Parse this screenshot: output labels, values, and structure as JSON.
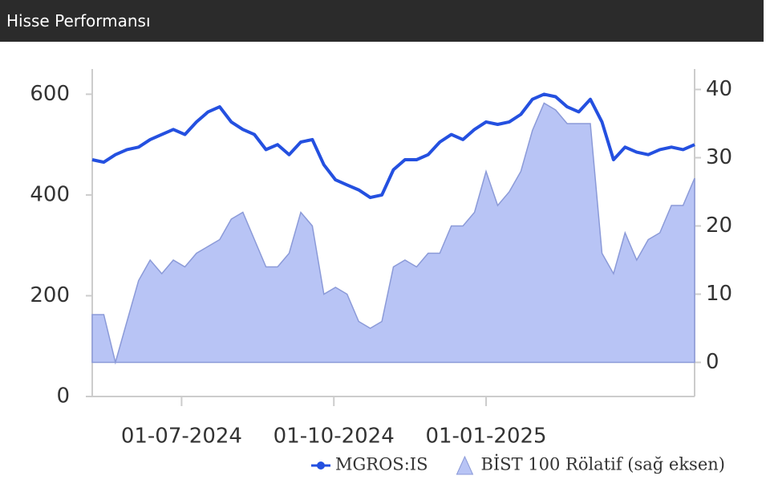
{
  "chart_data": {
    "type": "line",
    "title": "Hisse Performansı",
    "x": [
      "08-05-2024",
      "15-05-2024",
      "22-05-2024",
      "29-05-2024",
      "05-06-2024",
      "12-06-2024",
      "19-06-2024",
      "26-06-2024",
      "03-07-2024",
      "10-07-2024",
      "17-07-2024",
      "24-07-2024",
      "31-07-2024",
      "07-08-2024",
      "14-08-2024",
      "21-08-2024",
      "28-08-2024",
      "04-09-2024",
      "11-09-2024",
      "18-09-2024",
      "25-09-2024",
      "02-10-2024",
      "09-10-2024",
      "16-10-2024",
      "23-10-2024",
      "30-10-2024",
      "06-11-2024",
      "13-11-2024",
      "20-11-2024",
      "27-11-2024",
      "04-12-2024",
      "11-12-2024",
      "18-12-2024",
      "25-12-2024",
      "01-01-2025",
      "08-01-2025",
      "15-01-2025",
      "22-01-2025",
      "29-01-2025",
      "05-02-2025",
      "12-02-2025",
      "19-02-2025",
      "26-02-2025",
      "05-03-2025",
      "12-03-2025",
      "19-03-2025",
      "26-03-2025",
      "02-04-2025",
      "09-04-2025",
      "16-04-2025",
      "23-04-2025",
      "30-04-2025",
      "07-05-2025"
    ],
    "series": [
      {
        "name": "MGROS:IS",
        "color": "#2450e0",
        "values": [
          470,
          465,
          480,
          490,
          495,
          510,
          520,
          530,
          520,
          545,
          565,
          575,
          545,
          530,
          520,
          490,
          500,
          480,
          505,
          510,
          460,
          430,
          420,
          410,
          395,
          400,
          450,
          470,
          470,
          480,
          505,
          520,
          510,
          530,
          545,
          540,
          545,
          560,
          590,
          600,
          595,
          575,
          565,
          590,
          545,
          470,
          495,
          485,
          480,
          490,
          495,
          490,
          500
        ]
      },
      {
        "name": "BİST 100 Rölatif (sağ eksen)",
        "color": "#b8c4f5",
        "axis": "y2",
        "values": [
          7,
          7,
          0,
          6,
          12,
          15,
          13,
          15,
          14,
          16,
          17,
          18,
          21,
          22,
          18,
          14,
          14,
          16,
          22,
          20,
          10,
          11,
          10,
          6,
          5,
          6,
          14,
          15,
          14,
          16,
          16,
          20,
          20,
          22,
          28,
          23,
          25,
          28,
          34,
          38,
          37,
          35,
          35,
          35,
          16,
          13,
          19,
          15,
          18,
          19,
          23,
          23,
          27
        ]
      }
    ],
    "xlim": [
      "08-05-2024",
      "07-05-2025"
    ],
    "xticks": [
      "01-07-2024",
      "01-10-2024",
      "01-01-2025"
    ],
    "ylim": [
      0,
      650
    ],
    "yticks": [
      0,
      200,
      400,
      600
    ],
    "y2lim": [
      -5,
      43
    ],
    "y2ticks": [
      0,
      10,
      20,
      30,
      40
    ]
  }
}
